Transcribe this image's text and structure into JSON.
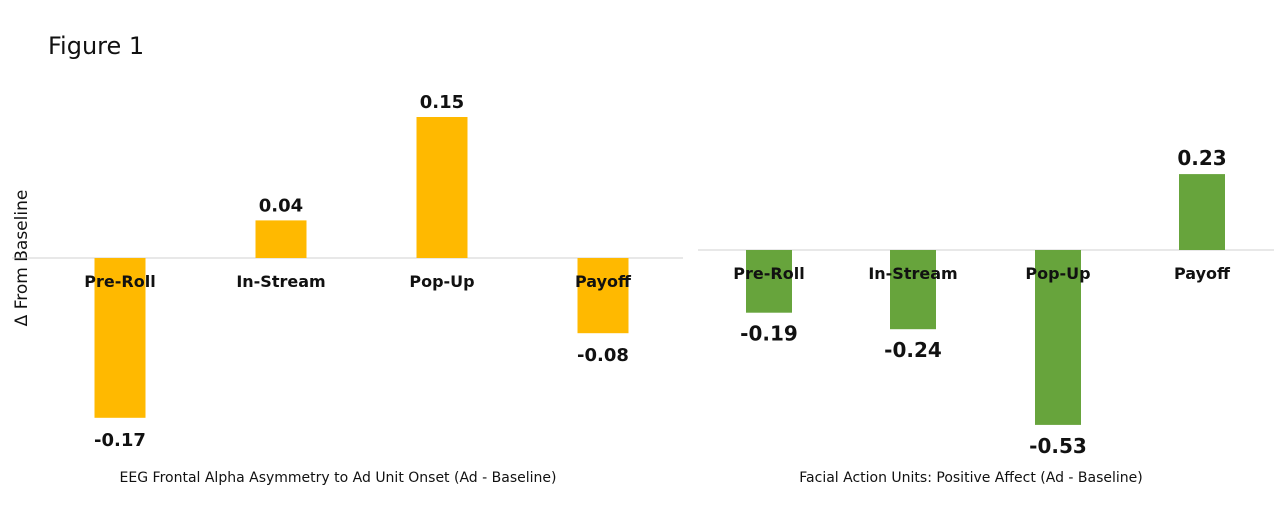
{
  "figure": {
    "title": "Figure 1",
    "ylabel": "Δ From Baseline"
  },
  "chart_data": [
    {
      "type": "bar",
      "title": "",
      "caption": "EEG Frontal Alpha Asymmetry to Ad Unit Onset (Ad - Baseline)",
      "xlabel": "",
      "ylabel": "Δ From Baseline",
      "categories": [
        "Pre-Roll",
        "In-Stream",
        "Pop-Up",
        "Payoff"
      ],
      "values": [
        -0.17,
        0.04,
        0.15,
        -0.08
      ],
      "labels": [
        "-0.17",
        "0.04",
        "0.15",
        "-0.08"
      ],
      "color": "#FFB900",
      "grid": false
    },
    {
      "type": "bar",
      "title": "",
      "caption": "Facial Action Units: Positive Affect (Ad - Baseline)",
      "xlabel": "",
      "ylabel": "",
      "categories": [
        "Pre-Roll",
        "In-Stream",
        "Pop-Up",
        "Payoff"
      ],
      "values": [
        -0.19,
        -0.24,
        -0.53,
        0.23
      ],
      "labels": [
        "-0.19",
        "-0.24",
        "-0.53",
        "0.23"
      ],
      "color": "#67A43C",
      "grid": false
    }
  ]
}
